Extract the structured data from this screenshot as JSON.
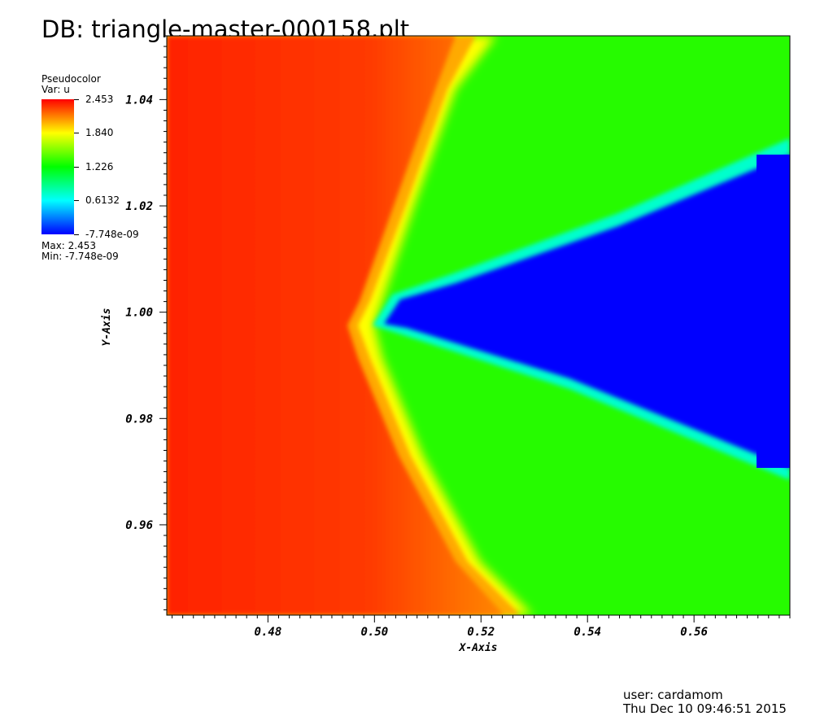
{
  "header": {
    "db_title": "DB: triangle-master-000158.plt"
  },
  "legend": {
    "plot_type": "Pseudocolor",
    "var_label": "Var: u",
    "max_label": "Max:  2.453",
    "min_label": "Min: -7.748e-09",
    "colormap": [
      "#ff0000",
      "#ffff00",
      "#00ff00",
      "#00ffff",
      "#0000ff"
    ],
    "ticks": [
      "2.453",
      "1.840",
      "1.226",
      "0.6132",
      "-7.748e-09"
    ]
  },
  "footer": {
    "user": "user: cardamom",
    "date": "Thu Dec 10 09:46:51 2015"
  },
  "chart_data": {
    "type": "heatmap",
    "variable": "u",
    "title": "DB: triangle-master-000158.plt",
    "xlabel": "X-Axis",
    "ylabel": "Y-Axis",
    "xlim": [
      0.461,
      0.578
    ],
    "ylim": [
      0.943,
      1.052
    ],
    "xticks": [
      "0.48",
      "0.50",
      "0.52",
      "0.54",
      "0.56"
    ],
    "yticks": [
      "0.96",
      "0.98",
      "1.00",
      "1.02",
      "1.04"
    ],
    "value_range": [
      -7.748e-09,
      2.453
    ],
    "grid": false,
    "legend_position": "top-left",
    "regions": {
      "high_value_boundary": [
        [
          0.578,
          1.052
        ],
        [
          0.54,
          1.052
        ],
        [
          0.517,
          1.045
        ],
        [
          0.51,
          1.025
        ],
        [
          0.5,
          1.006
        ],
        [
          0.497,
          0.998
        ],
        [
          0.501,
          0.99
        ],
        [
          0.512,
          0.97
        ],
        [
          0.523,
          0.948
        ],
        [
          0.528,
          0.943
        ]
      ],
      "low_value_wedge": [
        [
          0.578,
          1.029
        ],
        [
          0.545,
          1.017
        ],
        [
          0.515,
          1.006
        ],
        [
          0.503,
          1.002
        ],
        [
          0.501,
          0.998
        ],
        [
          0.53,
          0.99
        ],
        [
          0.578,
          0.971
        ]
      ]
    }
  }
}
